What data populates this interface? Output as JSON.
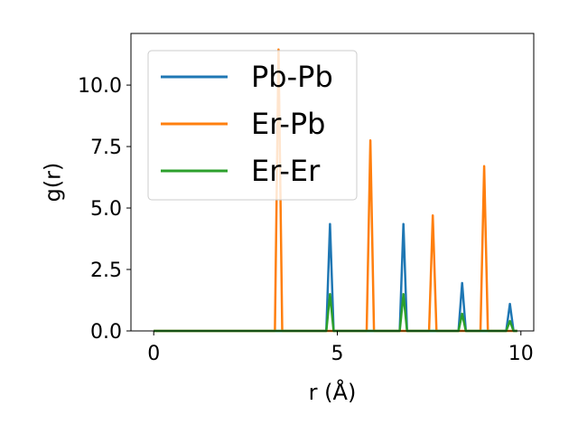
{
  "chart_data": {
    "type": "line",
    "title": "",
    "xlabel": "r (Å)",
    "ylabel": "g(r)",
    "xlim": [
      -0.62,
      10.35
    ],
    "ylim": [
      0,
      12.1
    ],
    "xticks": [
      0,
      5,
      10
    ],
    "xtick_labels": [
      "0",
      "5",
      "10"
    ],
    "yticks": [
      0,
      2.5,
      5.0,
      7.5,
      10.0
    ],
    "ytick_labels": [
      "0.0",
      "2.5",
      "5.0",
      "7.5",
      "10.0"
    ],
    "grid": false,
    "legend_position": "upper-left",
    "series": [
      {
        "name": "Pb-Pb",
        "color": "#1f77b4",
        "peaks": [
          {
            "r": 4.8,
            "g": 4.35
          },
          {
            "r": 6.8,
            "g": 4.35
          },
          {
            "r": 8.4,
            "g": 1.95
          },
          {
            "r": 9.7,
            "g": 1.1
          }
        ]
      },
      {
        "name": "Er-Pb",
        "color": "#ff7f0e",
        "peaks": [
          {
            "r": 3.4,
            "g": 11.45
          },
          {
            "r": 5.9,
            "g": 7.75
          },
          {
            "r": 7.6,
            "g": 4.7
          },
          {
            "r": 9.0,
            "g": 6.7
          }
        ]
      },
      {
        "name": "Er-Er",
        "color": "#2ca02c",
        "peaks": [
          {
            "r": 4.8,
            "g": 1.5
          },
          {
            "r": 6.8,
            "g": 1.5
          },
          {
            "r": 8.4,
            "g": 0.7
          },
          {
            "r": 9.7,
            "g": 0.4
          }
        ]
      }
    ],
    "x_range": [
      0,
      9.9
    ]
  }
}
